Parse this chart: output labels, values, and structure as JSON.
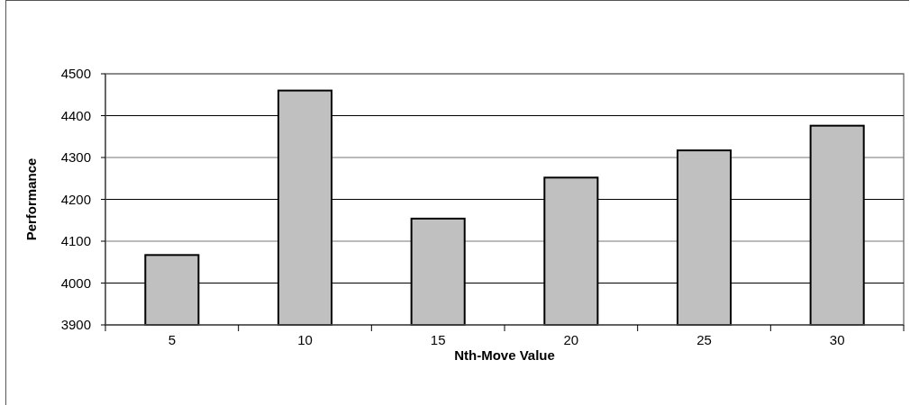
{
  "chart_data": {
    "type": "bar",
    "xlabel": "Nth-Move Value",
    "ylabel": "Performance",
    "categories": [
      "5",
      "10",
      "15",
      "20",
      "25",
      "30"
    ],
    "values": [
      4067,
      4460,
      4154,
      4252,
      4317,
      4376
    ],
    "color": "#c0c0c0",
    "ylim": [
      3900,
      4500
    ],
    "yticks": [
      3900,
      4000,
      4100,
      4200,
      4300,
      4400,
      4500
    ],
    "grid": "y"
  }
}
